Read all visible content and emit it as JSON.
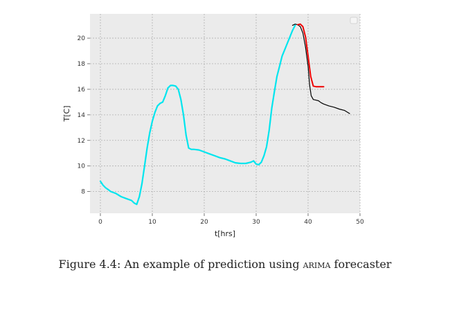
{
  "chart_data": {
    "type": "line",
    "xlabel": "t[hrs]",
    "ylabel": "T[C]",
    "xlim": [
      -2,
      50
    ],
    "ylim": [
      6.3,
      21.9
    ],
    "xticks": [
      0,
      10,
      20,
      30,
      40,
      50
    ],
    "yticks": [
      8,
      10,
      12,
      14,
      16,
      18,
      20
    ],
    "grid": true,
    "legend": "top-right (empty box)",
    "series": [
      {
        "color": "#000000",
        "points": [
          [
            37,
            21.0
          ],
          [
            37.5,
            21.1
          ],
          [
            38,
            21.05
          ],
          [
            38.5,
            20.9
          ],
          [
            39,
            20.4
          ],
          [
            39.5,
            19.3
          ],
          [
            40,
            17.8
          ],
          [
            40.3,
            16.3
          ],
          [
            40.6,
            15.5
          ],
          [
            41,
            15.2
          ],
          [
            41.5,
            15.15
          ],
          [
            42,
            15.1
          ],
          [
            42.5,
            14.95
          ],
          [
            43,
            14.85
          ],
          [
            44,
            14.7
          ],
          [
            45,
            14.6
          ],
          [
            46,
            14.45
          ],
          [
            47,
            14.35
          ],
          [
            48,
            14.1
          ]
        ]
      },
      {
        "color": "#00e5ee",
        "points": [
          [
            0,
            8.8
          ],
          [
            0.5,
            8.5
          ],
          [
            1,
            8.3
          ],
          [
            1.5,
            8.15
          ],
          [
            2,
            8.0
          ],
          [
            3,
            7.85
          ],
          [
            4,
            7.6
          ],
          [
            5,
            7.45
          ],
          [
            6,
            7.3
          ],
          [
            6.5,
            7.1
          ],
          [
            7,
            7.0
          ],
          [
            7.5,
            7.6
          ],
          [
            8,
            8.6
          ],
          [
            8.5,
            10.0
          ],
          [
            9,
            11.4
          ],
          [
            9.5,
            12.6
          ],
          [
            10,
            13.5
          ],
          [
            10.5,
            14.2
          ],
          [
            11,
            14.7
          ],
          [
            11.5,
            14.9
          ],
          [
            12,
            15.0
          ],
          [
            12.5,
            15.5
          ],
          [
            13,
            16.1
          ],
          [
            13.5,
            16.3
          ],
          [
            14,
            16.3
          ],
          [
            14.5,
            16.25
          ],
          [
            15,
            16.0
          ],
          [
            15.5,
            15.2
          ],
          [
            16,
            14.0
          ],
          [
            16.5,
            12.4
          ],
          [
            17,
            11.4
          ],
          [
            17.5,
            11.3
          ],
          [
            18,
            11.3
          ],
          [
            19,
            11.25
          ],
          [
            20,
            11.1
          ],
          [
            21,
            10.95
          ],
          [
            22,
            10.8
          ],
          [
            23,
            10.65
          ],
          [
            24,
            10.55
          ],
          [
            25,
            10.4
          ],
          [
            26,
            10.25
          ],
          [
            27,
            10.2
          ],
          [
            28,
            10.2
          ],
          [
            29,
            10.3
          ],
          [
            29.5,
            10.4
          ],
          [
            30,
            10.15
          ],
          [
            30.5,
            10.1
          ],
          [
            31,
            10.3
          ],
          [
            31.5,
            10.8
          ],
          [
            32,
            11.5
          ],
          [
            32.5,
            12.8
          ],
          [
            33,
            14.5
          ],
          [
            33.5,
            15.8
          ],
          [
            34,
            17.0
          ],
          [
            34.5,
            17.8
          ],
          [
            35,
            18.6
          ],
          [
            35.5,
            19.1
          ],
          [
            36,
            19.6
          ],
          [
            36.5,
            20.1
          ],
          [
            37,
            20.6
          ],
          [
            37.5,
            21.0
          ]
        ]
      },
      {
        "color": "#ee0000",
        "points": [
          [
            38,
            21.05
          ],
          [
            38.5,
            21.1
          ],
          [
            39,
            20.9
          ],
          [
            39.5,
            20.1
          ],
          [
            40,
            18.6
          ],
          [
            40.5,
            17.0
          ],
          [
            41,
            16.25
          ],
          [
            41.5,
            16.2
          ],
          [
            42,
            16.2
          ],
          [
            43,
            16.2
          ]
        ]
      }
    ]
  },
  "caption": {
    "prefix": "Figure 4.4:  An example of prediction using ",
    "method": "arima",
    "suffix": " forecaster"
  }
}
